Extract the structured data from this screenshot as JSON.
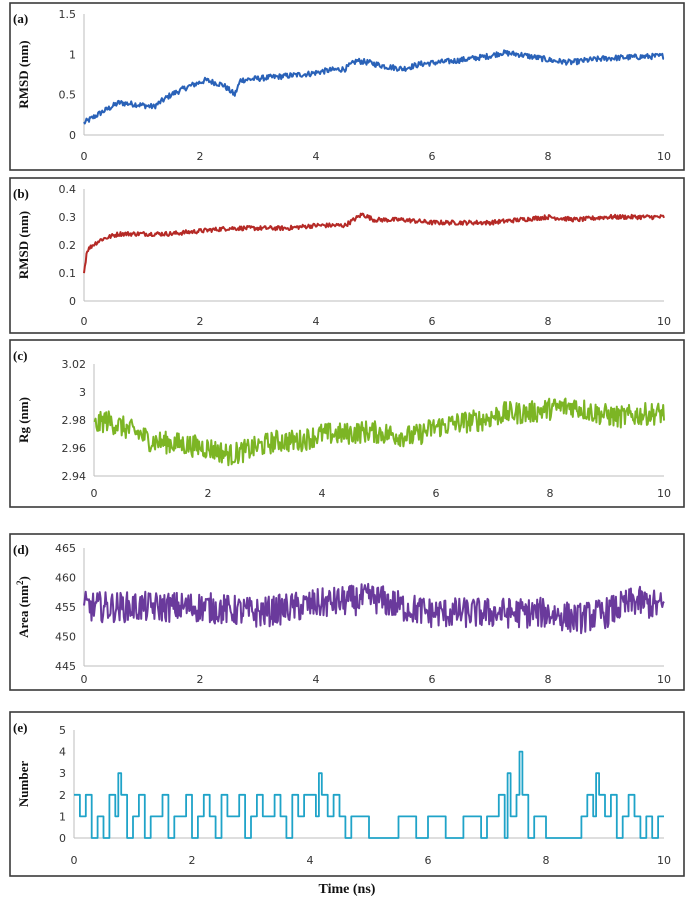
{
  "figure": {
    "xlabel": "Time (ns)"
  },
  "chart_data": [
    {
      "type": "line",
      "panel": "(a)",
      "ylabel": "RMSD (nm)",
      "ylabel_sup": "",
      "color": "#2a62b8",
      "ylim": [
        0,
        1.5
      ],
      "yticks": [
        "0",
        "0.5",
        "1",
        "1.5"
      ],
      "xlim": [
        0,
        10
      ],
      "xticks": [
        "0",
        "2",
        "4",
        "6",
        "8",
        "10"
      ],
      "series": [
        {
          "x": [
            0,
            0.3,
            0.6,
            0.9,
            1.2,
            1.5,
            1.8,
            2.1,
            2.4,
            2.6,
            2.7,
            3.0,
            3.3,
            3.6,
            3.9,
            4.2,
            4.5,
            4.7,
            4.9,
            5.2,
            5.5,
            5.8,
            6.1,
            6.4,
            6.7,
            7.0,
            7.2,
            7.5,
            7.8,
            8.1,
            8.4,
            8.7,
            9.0,
            9.3,
            9.6,
            10.0
          ],
          "y": [
            0.15,
            0.28,
            0.4,
            0.38,
            0.35,
            0.5,
            0.6,
            0.68,
            0.62,
            0.5,
            0.68,
            0.7,
            0.72,
            0.74,
            0.76,
            0.8,
            0.82,
            0.92,
            0.9,
            0.85,
            0.82,
            0.88,
            0.9,
            0.92,
            0.95,
            0.98,
            1.02,
            1.0,
            0.96,
            0.92,
            0.9,
            0.93,
            0.95,
            0.96,
            0.97,
            0.98
          ]
        }
      ],
      "noise": 0.035
    },
    {
      "type": "line",
      "panel": "(b)",
      "ylabel": "RMSD (nm)",
      "ylabel_sup": "",
      "color": "#b52a26",
      "ylim": [
        0,
        0.4
      ],
      "yticks": [
        "0",
        "0.1",
        "0.2",
        "0.3",
        "0.4"
      ],
      "xlim": [
        0,
        10
      ],
      "xticks": [
        "0",
        "2",
        "4",
        "6",
        "8",
        "10"
      ],
      "series": [
        {
          "x": [
            0,
            0.05,
            0.15,
            0.3,
            0.6,
            1.0,
            1.5,
            2.0,
            2.5,
            3.0,
            3.5,
            4.0,
            4.5,
            4.8,
            5.0,
            5.5,
            6.0,
            6.5,
            7.0,
            7.5,
            8.0,
            8.5,
            9.0,
            9.5,
            10.0
          ],
          "y": [
            0.1,
            0.18,
            0.2,
            0.22,
            0.24,
            0.24,
            0.24,
            0.25,
            0.26,
            0.26,
            0.26,
            0.27,
            0.27,
            0.31,
            0.29,
            0.29,
            0.28,
            0.28,
            0.28,
            0.29,
            0.3,
            0.29,
            0.3,
            0.3,
            0.3
          ]
        }
      ],
      "noise": 0.008
    },
    {
      "type": "line",
      "panel": "(c)",
      "ylabel": "Rg (nm)",
      "ylabel_sup": "",
      "color": "#7cb524",
      "ylim": [
        2.94,
        3.02
      ],
      "yticks": [
        "2.94",
        "2.96",
        "2.98",
        "3",
        "3.02"
      ],
      "xlim": [
        0,
        10
      ],
      "xticks": [
        "0",
        "2",
        "4",
        "6",
        "8",
        "10"
      ],
      "series": [
        {
          "x": [
            0,
            0.2,
            0.5,
            0.8,
            1.0,
            1.5,
            2.0,
            2.4,
            2.8,
            3.2,
            3.6,
            4.0,
            4.4,
            4.8,
            5.2,
            5.6,
            6.0,
            6.4,
            6.8,
            7.2,
            7.6,
            8.0,
            8.4,
            8.8,
            9.2,
            9.6,
            10.0
          ],
          "y": [
            2.975,
            2.98,
            2.975,
            2.97,
            2.965,
            2.963,
            2.96,
            2.955,
            2.96,
            2.965,
            2.965,
            2.97,
            2.97,
            2.972,
            2.97,
            2.968,
            2.975,
            2.978,
            2.98,
            2.985,
            2.985,
            2.988,
            2.99,
            2.985,
            2.982,
            2.984,
            2.985
          ]
        }
      ],
      "noise": 0.008
    },
    {
      "type": "line",
      "panel": "(d)",
      "ylabel": "Area (nm",
      "ylabel_sup": "2",
      "ylabel_after": ")",
      "color": "#6a3a9c",
      "ylim": [
        445,
        465
      ],
      "yticks": [
        "445",
        "450",
        "455",
        "460",
        "465"
      ],
      "xlim": [
        0,
        10
      ],
      "xticks": [
        "0",
        "2",
        "4",
        "6",
        "8",
        "10"
      ],
      "series": [
        {
          "x": [
            0,
            1,
            2,
            3,
            4,
            4.5,
            5.0,
            5.5,
            6,
            7,
            8,
            8.5,
            9,
            9.5,
            10
          ],
          "y": [
            455,
            455,
            455,
            454,
            455.5,
            456,
            456.5,
            455,
            454,
            454,
            454,
            453,
            454,
            456,
            455
          ]
        }
      ],
      "noise": 2.6
    },
    {
      "type": "line",
      "panel": "(e)",
      "ylabel": "Number",
      "ylabel_sup": "",
      "color": "#1fa3c8",
      "ylim": [
        0,
        5
      ],
      "yticks": [
        "0",
        "1",
        "2",
        "3",
        "4",
        "5"
      ],
      "xlim": [
        0,
        10
      ],
      "xticks": [
        "0",
        "2",
        "4",
        "6",
        "8",
        "10"
      ],
      "series": [
        {
          "x": [
            0.0,
            0.1,
            0.2,
            0.3,
            0.4,
            0.5,
            0.6,
            0.7,
            0.75,
            0.8,
            0.9,
            1.0,
            1.1,
            1.2,
            1.3,
            1.4,
            1.5,
            1.6,
            1.7,
            1.8,
            1.9,
            2.0,
            2.1,
            2.2,
            2.3,
            2.4,
            2.5,
            2.6,
            2.7,
            2.8,
            2.9,
            3.0,
            3.1,
            3.2,
            3.3,
            3.4,
            3.5,
            3.6,
            3.7,
            3.8,
            3.9,
            4.0,
            4.1,
            4.15,
            4.2,
            4.3,
            4.4,
            4.5,
            4.6,
            4.7,
            4.8,
            5.0,
            5.2,
            5.5,
            5.8,
            6.0,
            6.3,
            6.6,
            6.9,
            7.0,
            7.1,
            7.2,
            7.3,
            7.35,
            7.4,
            7.5,
            7.55,
            7.6,
            7.7,
            7.8,
            8.0,
            8.2,
            8.4,
            8.6,
            8.7,
            8.8,
            8.85,
            8.9,
            9.0,
            9.1,
            9.2,
            9.3,
            9.4,
            9.5,
            9.6,
            9.7,
            9.8,
            9.9,
            10.0
          ],
          "y": [
            2,
            1,
            2,
            0,
            1,
            0,
            2,
            1,
            3,
            2,
            0,
            1,
            2,
            0,
            1,
            1,
            2,
            0,
            1,
            1,
            2,
            0,
            1,
            2,
            1,
            0,
            2,
            1,
            1,
            2,
            0,
            1,
            2,
            1,
            1,
            2,
            1,
            0,
            2,
            1,
            2,
            2,
            1,
            3,
            2,
            1,
            2,
            1,
            0,
            1,
            1,
            0,
            0,
            1,
            0,
            1,
            0,
            1,
            0,
            1,
            1,
            2,
            0,
            3,
            1,
            2,
            4,
            2,
            0,
            1,
            0,
            0,
            0,
            1,
            2,
            1,
            3,
            2,
            1,
            2,
            0,
            1,
            2,
            1,
            0,
            1,
            0,
            1,
            1
          ]
        }
      ],
      "noise": 0
    }
  ]
}
